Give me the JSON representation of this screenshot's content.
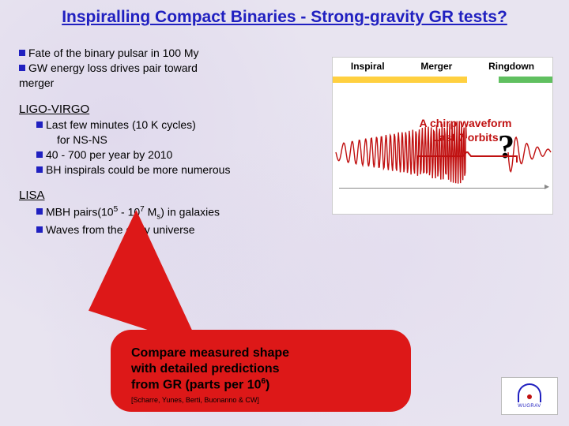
{
  "title": "Inspiralling Compact Binaries - Strong-gravity GR tests?",
  "intro": {
    "line1": "Fate of the binary pulsar in 100 My",
    "line2a": "GW energy loss drives pair toward",
    "line2b": "merger"
  },
  "ligo": {
    "head": "LIGO-VIRGO",
    "b1": "Last few minutes (10 K cycles)",
    "b1sub": "for NS-NS",
    "b2": "40 - 700 per year by 2010",
    "b3": "BH inspirals could be more numerous"
  },
  "lisa": {
    "head": "LISA",
    "b1a": "MBH pairs(10",
    "b1exp1": "5",
    "b1b": " - 10",
    "b1exp2": "7",
    "b1c": " M",
    "b1sub": "s",
    "b1d": ") in galaxies",
    "b2": "Waves from the early universe"
  },
  "figure": {
    "phase1": "Inspiral",
    "phase2": "Merger",
    "phase3": "Ringdown",
    "qmark": "?",
    "colors": {
      "inspiral_bar": "#ffd040",
      "merger_bar": "#ffffff",
      "ringdown_bar": "#60c060",
      "wave_stroke": "#c01010"
    },
    "wave": {
      "type": "chirp",
      "cycles_inspiral": 11,
      "amp_start": 10,
      "amp_end": 42,
      "ringdown_cycles": 4,
      "ringdown_decay": 0.5
    }
  },
  "chirp": {
    "line1": "A chirp waveform",
    "line2": "Last 7 orbits"
  },
  "callout": {
    "text1": "Compare measured shape",
    "text2": "with detailed predictions",
    "text3a": "from GR (parts per 10",
    "text3exp": "6",
    "text3b": ")",
    "credit": "[Scharre, Yunes, Berti, Buonanno & CW]",
    "bg": "#dd1818"
  },
  "logo_text": "WUGRAV",
  "colors": {
    "title": "#2020c0",
    "bullet": "#2020c0",
    "chirp_label": "#c01010",
    "background": "#e8e4f0"
  }
}
